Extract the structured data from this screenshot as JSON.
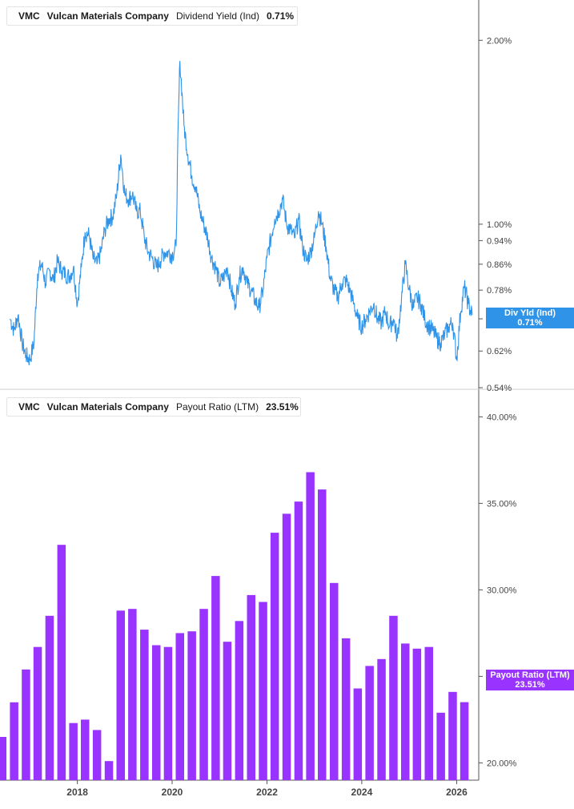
{
  "colors": {
    "yield": "#2f93e8",
    "payout": "#9933ff",
    "axis": "#555555",
    "tick_text": "#444444"
  },
  "top_panel": {
    "legend": {
      "ticker": "VMC",
      "company": "Vulcan Materials Company",
      "metric": "Dividend Yield (Ind)",
      "value": "0.71%"
    },
    "badge": {
      "line1": "Div Yld (Ind)",
      "line2": "0.71%"
    }
  },
  "bottom_panel": {
    "legend": {
      "ticker": "VMC",
      "company": "Vulcan Materials Company",
      "metric": "Payout Ratio (LTM)",
      "value": "23.51%"
    },
    "badge": {
      "line1": "Payout Ratio (LTM)",
      "line2": "23.51%"
    }
  },
  "chart_data": [
    {
      "type": "line",
      "scale": "log",
      "series": [
        {
          "name": "Dividend Yield (Ind)",
          "last_value": 0.71
        }
      ],
      "x_range": [
        "2016-05",
        "2026-05"
      ],
      "ylim": [
        0.54,
        2.3
      ],
      "y_ticks": [
        {
          "value": 2.0,
          "label": "2.00%"
        },
        {
          "value": 1.0,
          "label": "1.00%"
        },
        {
          "value": 0.94,
          "label": "0.94%"
        },
        {
          "value": 0.86,
          "label": "0.86%"
        },
        {
          "value": 0.78,
          "label": "0.78%"
        },
        {
          "value": 0.7,
          "label": "0.70%"
        },
        {
          "value": 0.62,
          "label": "0.62%"
        },
        {
          "value": 0.54,
          "label": "0.54%"
        }
      ],
      "points": [
        [
          "2016-08-01",
          0.7
        ],
        [
          "2016-09-01",
          0.67
        ],
        [
          "2016-10-01",
          0.71
        ],
        [
          "2016-11-01",
          0.64
        ],
        [
          "2016-12-01",
          0.61
        ],
        [
          "2017-01-01",
          0.6
        ],
        [
          "2017-02-01",
          0.64
        ],
        [
          "2017-03-01",
          0.83
        ],
        [
          "2017-04-01",
          0.86
        ],
        [
          "2017-05-01",
          0.8
        ],
        [
          "2017-06-01",
          0.84
        ],
        [
          "2017-07-01",
          0.81
        ],
        [
          "2017-08-01",
          0.87
        ],
        [
          "2017-09-01",
          0.84
        ],
        [
          "2017-10-01",
          0.83
        ],
        [
          "2017-11-01",
          0.82
        ],
        [
          "2017-12-01",
          0.85
        ],
        [
          "2018-01-01",
          0.74
        ],
        [
          "2018-02-01",
          0.85
        ],
        [
          "2018-03-01",
          0.97
        ],
        [
          "2018-04-01",
          0.96
        ],
        [
          "2018-05-01",
          0.88
        ],
        [
          "2018-06-01",
          0.86
        ],
        [
          "2018-07-01",
          0.9
        ],
        [
          "2018-08-01",
          0.98
        ],
        [
          "2018-09-01",
          1.02
        ],
        [
          "2018-10-01",
          1.03
        ],
        [
          "2018-11-01",
          1.12
        ],
        [
          "2018-12-01",
          1.3
        ],
        [
          "2019-01-01",
          1.12
        ],
        [
          "2019-02-01",
          1.1
        ],
        [
          "2019-03-01",
          1.12
        ],
        [
          "2019-04-01",
          1.05
        ],
        [
          "2019-05-01",
          1.05
        ],
        [
          "2019-06-01",
          0.95
        ],
        [
          "2019-07-01",
          0.9
        ],
        [
          "2019-08-01",
          0.88
        ],
        [
          "2019-09-01",
          0.85
        ],
        [
          "2019-10-01",
          0.87
        ],
        [
          "2019-11-01",
          0.9
        ],
        [
          "2019-12-01",
          0.9
        ],
        [
          "2020-01-01",
          0.89
        ],
        [
          "2020-02-01",
          0.92
        ],
        [
          "2020-03-01",
          1.85
        ],
        [
          "2020-04-01",
          1.45
        ],
        [
          "2020-05-01",
          1.3
        ],
        [
          "2020-06-01",
          1.2
        ],
        [
          "2020-07-01",
          1.15
        ],
        [
          "2020-08-01",
          1.05
        ],
        [
          "2020-09-01",
          1.0
        ],
        [
          "2020-10-01",
          0.95
        ],
        [
          "2020-11-01",
          0.88
        ],
        [
          "2020-12-01",
          0.85
        ],
        [
          "2021-01-01",
          0.8
        ],
        [
          "2021-02-01",
          0.82
        ],
        [
          "2021-03-01",
          0.85
        ],
        [
          "2021-04-01",
          0.78
        ],
        [
          "2021-05-01",
          0.74
        ],
        [
          "2021-06-01",
          0.82
        ],
        [
          "2021-07-01",
          0.85
        ],
        [
          "2021-08-01",
          0.8
        ],
        [
          "2021-09-01",
          0.78
        ],
        [
          "2021-10-01",
          0.75
        ],
        [
          "2021-11-01",
          0.73
        ],
        [
          "2021-12-01",
          0.78
        ],
        [
          "2022-01-01",
          0.88
        ],
        [
          "2022-02-01",
          0.95
        ],
        [
          "2022-03-01",
          1.02
        ],
        [
          "2022-04-01",
          1.05
        ],
        [
          "2022-05-01",
          1.1
        ],
        [
          "2022-06-01",
          1.0
        ],
        [
          "2022-07-01",
          0.98
        ],
        [
          "2022-08-01",
          0.95
        ],
        [
          "2022-09-01",
          1.02
        ],
        [
          "2022-10-01",
          0.92
        ],
        [
          "2022-11-01",
          0.87
        ],
        [
          "2022-12-01",
          0.9
        ],
        [
          "2023-01-01",
          0.95
        ],
        [
          "2023-02-01",
          1.05
        ],
        [
          "2023-03-01",
          1.0
        ],
        [
          "2023-04-01",
          0.92
        ],
        [
          "2023-05-01",
          0.82
        ],
        [
          "2023-06-01",
          0.78
        ],
        [
          "2023-07-01",
          0.76
        ],
        [
          "2023-08-01",
          0.8
        ],
        [
          "2023-09-01",
          0.81
        ],
        [
          "2023-10-01",
          0.78
        ],
        [
          "2023-11-01",
          0.74
        ],
        [
          "2023-12-01",
          0.7
        ],
        [
          "2024-01-01",
          0.68
        ],
        [
          "2024-02-01",
          0.7
        ],
        [
          "2024-03-01",
          0.72
        ],
        [
          "2024-04-01",
          0.74
        ],
        [
          "2024-05-01",
          0.7
        ],
        [
          "2024-06-01",
          0.69
        ],
        [
          "2024-07-01",
          0.72
        ],
        [
          "2024-08-01",
          0.68
        ],
        [
          "2024-09-01",
          0.7
        ],
        [
          "2024-10-01",
          0.65
        ],
        [
          "2024-11-01",
          0.75
        ],
        [
          "2024-12-01",
          0.86
        ],
        [
          "2025-01-01",
          0.78
        ],
        [
          "2025-02-01",
          0.73
        ],
        [
          "2025-03-01",
          0.76
        ],
        [
          "2025-04-01",
          0.74
        ],
        [
          "2025-05-01",
          0.7
        ],
        [
          "2025-06-01",
          0.68
        ],
        [
          "2025-07-01",
          0.67
        ],
        [
          "2025-08-01",
          0.65
        ],
        [
          "2025-09-01",
          0.64
        ],
        [
          "2025-10-01",
          0.66
        ],
        [
          "2025-11-01",
          0.68
        ],
        [
          "2025-12-01",
          0.69
        ],
        [
          "2026-01-01",
          0.6
        ],
        [
          "2026-02-01",
          0.72
        ],
        [
          "2026-03-01",
          0.79
        ],
        [
          "2026-04-01",
          0.74
        ],
        [
          "2026-05-01",
          0.71
        ]
      ]
    },
    {
      "type": "bar",
      "series": [
        {
          "name": "Payout Ratio (LTM)",
          "last_value": 23.51
        }
      ],
      "x_range": [
        "2016-05",
        "2026-05"
      ],
      "ylim": [
        19.0,
        41.5
      ],
      "y_ticks": [
        {
          "value": 40,
          "label": "40.00%"
        },
        {
          "value": 35,
          "label": "35.00%"
        },
        {
          "value": 30,
          "label": "30.00%"
        },
        {
          "value": 25,
          "label": "25.00%"
        },
        {
          "value": 20,
          "label": "20.00%"
        }
      ],
      "x_ticks": [
        {
          "date": "2018-01-01",
          "label": "2018"
        },
        {
          "date": "2020-01-01",
          "label": "2020"
        },
        {
          "date": "2022-01-01",
          "label": "2022"
        },
        {
          "date": "2024-01-01",
          "label": "2024"
        },
        {
          "date": "2026-01-01",
          "label": "2026"
        }
      ],
      "bars": [
        {
          "date": "2016-06-01",
          "value": 21.5
        },
        {
          "date": "2016-09-01",
          "value": 23.5
        },
        {
          "date": "2016-12-01",
          "value": 25.4
        },
        {
          "date": "2017-03-01",
          "value": 26.7
        },
        {
          "date": "2017-06-01",
          "value": 28.5
        },
        {
          "date": "2017-09-01",
          "value": 32.6
        },
        {
          "date": "2017-12-01",
          "value": 22.3
        },
        {
          "date": "2018-03-01",
          "value": 22.5
        },
        {
          "date": "2018-06-01",
          "value": 21.9
        },
        {
          "date": "2018-09-01",
          "value": 20.1
        },
        {
          "date": "2018-12-01",
          "value": 28.8
        },
        {
          "date": "2019-03-01",
          "value": 28.9
        },
        {
          "date": "2019-06-01",
          "value": 27.7
        },
        {
          "date": "2019-09-01",
          "value": 26.8
        },
        {
          "date": "2019-12-01",
          "value": 26.7
        },
        {
          "date": "2020-03-01",
          "value": 27.5
        },
        {
          "date": "2020-06-01",
          "value": 27.6
        },
        {
          "date": "2020-09-01",
          "value": 28.9
        },
        {
          "date": "2020-12-01",
          "value": 30.8
        },
        {
          "date": "2021-03-01",
          "value": 27.0
        },
        {
          "date": "2021-06-01",
          "value": 28.2
        },
        {
          "date": "2021-09-01",
          "value": 29.7
        },
        {
          "date": "2021-12-01",
          "value": 29.3
        },
        {
          "date": "2022-03-01",
          "value": 33.3
        },
        {
          "date": "2022-06-01",
          "value": 34.4
        },
        {
          "date": "2022-09-01",
          "value": 35.1
        },
        {
          "date": "2022-12-01",
          "value": 36.8
        },
        {
          "date": "2023-03-01",
          "value": 35.8
        },
        {
          "date": "2023-06-01",
          "value": 30.4
        },
        {
          "date": "2023-09-01",
          "value": 27.2
        },
        {
          "date": "2023-12-01",
          "value": 24.3
        },
        {
          "date": "2024-03-01",
          "value": 25.6
        },
        {
          "date": "2024-06-01",
          "value": 26.0
        },
        {
          "date": "2024-09-01",
          "value": 28.5
        },
        {
          "date": "2024-12-01",
          "value": 26.9
        },
        {
          "date": "2025-03-01",
          "value": 26.6
        },
        {
          "date": "2025-06-01",
          "value": 26.7
        },
        {
          "date": "2025-09-01",
          "value": 22.9
        },
        {
          "date": "2025-12-01",
          "value": 24.1
        },
        {
          "date": "2026-03-01",
          "value": 23.51
        }
      ]
    }
  ]
}
